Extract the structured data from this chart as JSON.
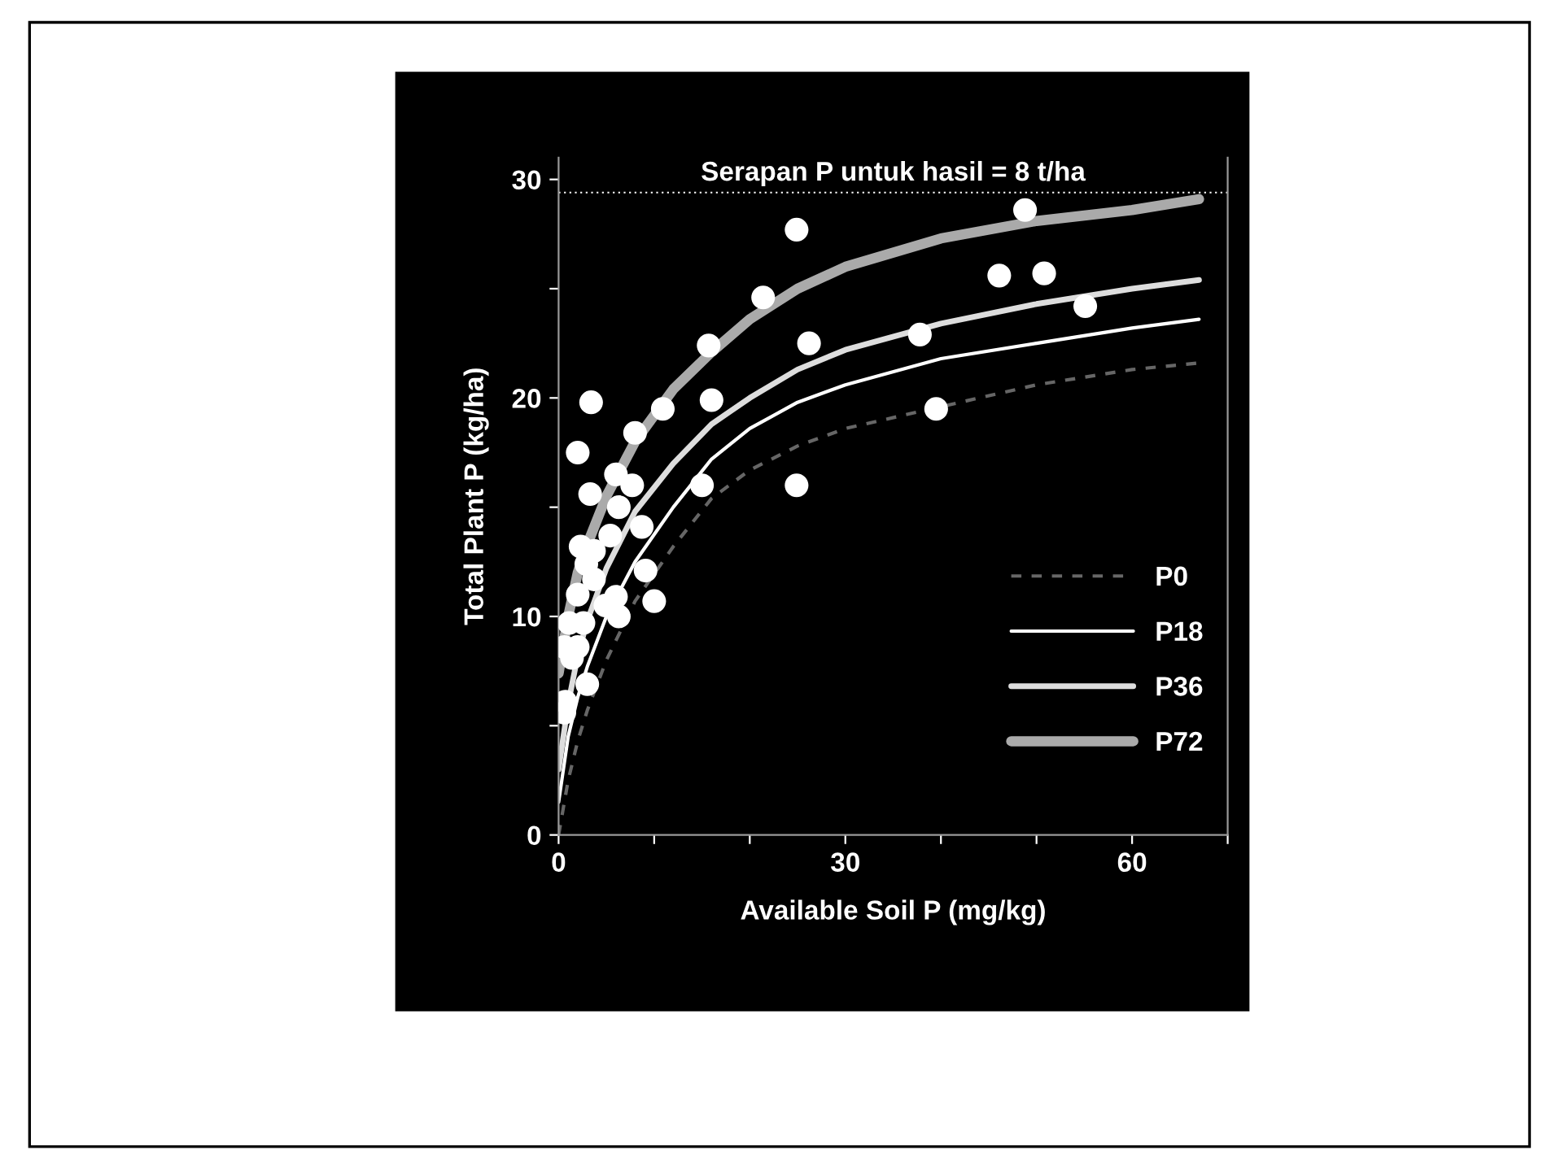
{
  "chart_data": {
    "type": "line",
    "xlabel": "Available Soil P (mg/kg)",
    "ylabel": "Total Plant P (kg/ha)",
    "xlim": [
      0,
      70
    ],
    "ylim": [
      0,
      31
    ],
    "xticks": [
      0,
      {
        "value": 10,
        "label": null
      },
      {
        "value": 20,
        "label": null
      },
      30,
      {
        "value": 40,
        "label": null
      },
      {
        "value": 50,
        "label": null
      },
      60,
      {
        "value": 70,
        "label": null
      }
    ],
    "yticks": [
      0,
      {
        "value": 5,
        "label": null
      },
      10,
      {
        "value": 15,
        "label": null
      },
      20,
      {
        "value": 25,
        "label": null
      },
      30
    ],
    "grid": false,
    "legend": "bottom right",
    "annotations": [
      "Serapan P untuk hasil = 8 t/ha"
    ],
    "ref_lines": [
      {
        "axis": "y",
        "value": 29.4,
        "color": "#ffffff",
        "line_style": "dotted"
      }
    ],
    "series": [
      {
        "name": "P0",
        "color": "#666666",
        "line_style": "dashed",
        "marker": "none",
        "x": [
          0,
          1,
          2,
          3,
          5,
          8,
          12,
          16,
          20,
          25,
          30,
          40,
          50,
          60,
          67
        ],
        "values": [
          0,
          2.5,
          4.3,
          5.7,
          8,
          10.7,
          13.2,
          15.4,
          16.7,
          17.8,
          18.6,
          19.6,
          20.6,
          21.3,
          21.6
        ]
      },
      {
        "name": "P18",
        "color": "#ffffff",
        "line_style": "solid",
        "marker": "none",
        "x": [
          0,
          1,
          2,
          3,
          5,
          8,
          12,
          16,
          20,
          25,
          30,
          40,
          50,
          60,
          67
        ],
        "values": [
          1.5,
          4.5,
          6.3,
          7.7,
          10,
          12.5,
          15,
          17.2,
          18.6,
          19.8,
          20.6,
          21.8,
          22.5,
          23.2,
          23.6
        ]
      },
      {
        "name": "P36",
        "color": "#dddddd",
        "line_style": "solid",
        "marker": "none",
        "x": [
          0,
          1,
          2,
          3,
          5,
          8,
          12,
          16,
          20,
          25,
          30,
          40,
          50,
          60,
          67
        ],
        "values": [
          3.0,
          6.0,
          8.2,
          9.8,
          12.2,
          14.8,
          17,
          18.8,
          20,
          21.3,
          22.2,
          23.4,
          24.3,
          25,
          25.4
        ]
      },
      {
        "name": "P72",
        "color": "#aaaaaa",
        "line_style": "solid",
        "marker": "none",
        "x": [
          0,
          1,
          2,
          3,
          5,
          8,
          12,
          16,
          20,
          25,
          30,
          40,
          50,
          60,
          67
        ],
        "values": [
          7.4,
          10,
          12,
          13.3,
          15.5,
          18,
          20.4,
          22.1,
          23.6,
          25,
          26,
          27.3,
          28.1,
          28.6,
          29.1
        ]
      },
      {
        "type": "scatter",
        "color": "#ffffff",
        "marker": "circle",
        "x": [
          24.9,
          21.4,
          15.7,
          26.2,
          10.9,
          16.0,
          3.4,
          2.0,
          8.0,
          3.3,
          6.0,
          7.7,
          6.3,
          15.0,
          24.9,
          8.7,
          5.4,
          2.3,
          3.7,
          2.9,
          9.1,
          2.0,
          3.7,
          10.0,
          4.9,
          6.0,
          6.3,
          1.1,
          2.6,
          0.6,
          2.0,
          1.4,
          3.0,
          0.7,
          0.6,
          48.8,
          46.1,
          50.8,
          55.1,
          37.8,
          39.5
        ],
        "values": [
          27.7,
          24.6,
          22.4,
          22.5,
          19.5,
          19.9,
          19.8,
          17.5,
          18.4,
          15.6,
          16.5,
          16.0,
          15.0,
          16.0,
          16.0,
          14.1,
          13.7,
          13.2,
          13.0,
          12.4,
          12.1,
          11.0,
          11.7,
          10.7,
          10.5,
          10.9,
          10.0,
          9.7,
          9.7,
          8.6,
          8.6,
          8.1,
          6.9,
          6.1,
          5.6,
          28.6,
          25.6,
          25.7,
          24.2,
          22.9,
          19.5
        ]
      }
    ]
  }
}
